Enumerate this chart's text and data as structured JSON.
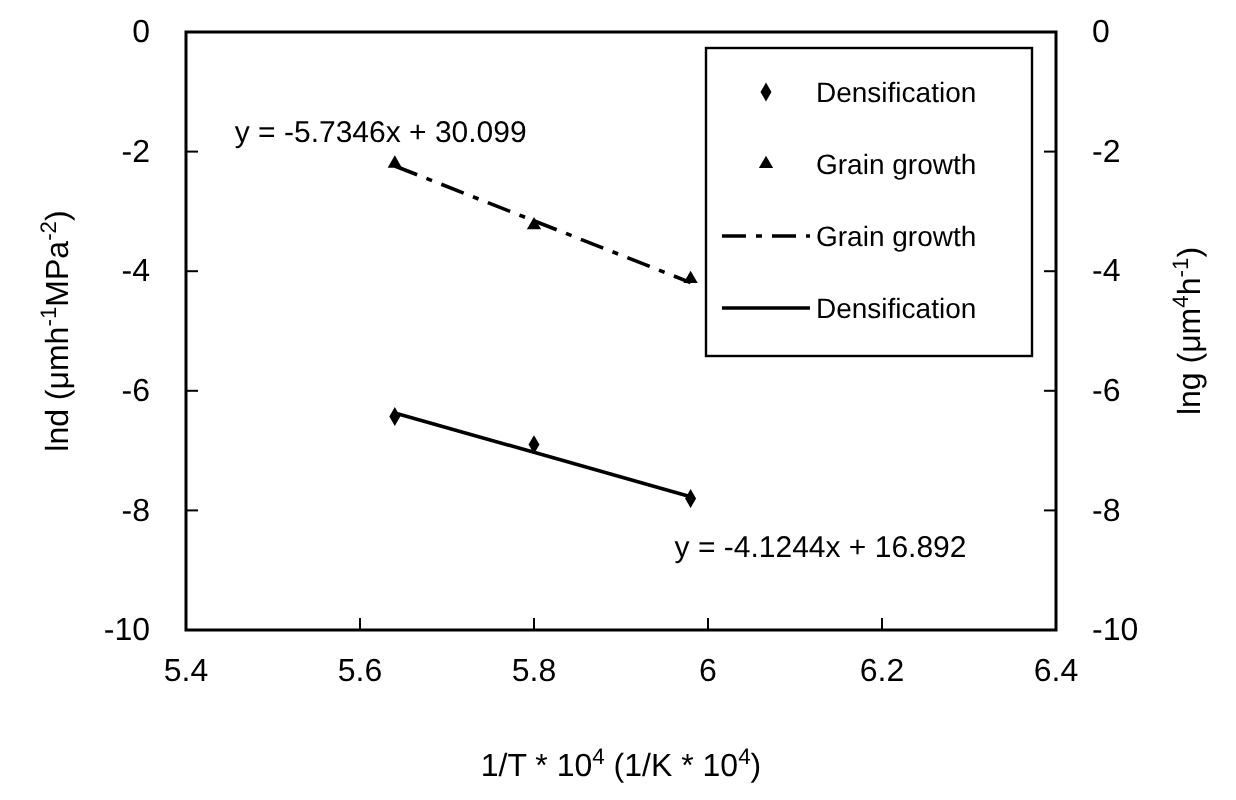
{
  "chart_data": {
    "type": "scatter",
    "xlabel": "1/T * 10$^{4}$ (1/K * 10$^{4}$)",
    "ylabel": "lnd (μmh$^{-1}$MPa$^{-2}$)",
    "y2label": "lng (μm$^{4}$h$^{-1}$)",
    "xlim": [
      5.4,
      6.4
    ],
    "xticks": [
      5.4,
      5.6,
      5.8,
      6,
      6.2,
      6.4
    ],
    "ylim": [
      -10,
      0
    ],
    "yticks": [
      -10,
      -8,
      -6,
      -4,
      -2,
      0
    ],
    "y2lim": [
      -10,
      0
    ],
    "y2ticks": [
      -10,
      -8,
      -6,
      -4,
      -2,
      0
    ],
    "grid": false,
    "legend": "top right",
    "series": [
      {
        "name": "Densification",
        "type": "scatter",
        "marker": "diamond",
        "color": "#000000",
        "x": [
          5.64,
          5.8,
          5.98
        ],
        "values": [
          -6.43,
          -6.9,
          -7.8
        ]
      },
      {
        "name": "Grain growth",
        "type": "scatter",
        "marker": "triangle",
        "color": "#000000",
        "x": [
          5.64,
          5.8,
          5.98
        ],
        "values": [
          -2.2,
          -3.23,
          -4.13
        ]
      },
      {
        "name": "Grain growth",
        "type": "line",
        "marker": "none",
        "line_style": "dashed",
        "color": "#000000",
        "x": [
          5.64,
          5.98
        ],
        "values": [
          -2.24,
          -4.19
        ]
      },
      {
        "name": "Densification",
        "type": "line",
        "marker": "none",
        "line_style": "solid",
        "color": "#000000",
        "x": [
          5.64,
          5.98
        ],
        "values": [
          -6.37,
          -7.77
        ]
      }
    ],
    "annotations": [
      {
        "text": "y = -5.7346x + 30.099",
        "x": 5.64,
        "y": -2.24
      },
      {
        "text": "y = -4.1244x + 16.892",
        "x": 5.98,
        "y": -7.77
      }
    ]
  }
}
